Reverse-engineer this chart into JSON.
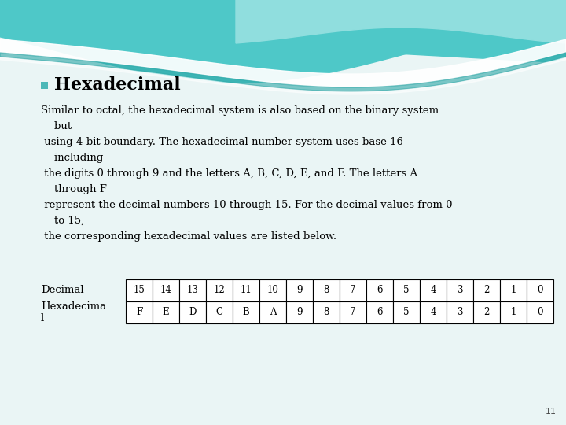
{
  "title": "Hexadecimal",
  "bullet_color": "#4db8b8",
  "title_fontsize": 16,
  "body_text": [
    "Similar to octal, the hexadecimal system is also based on the binary system",
    "    but",
    " using 4-bit boundary. The hexadecimal number system uses base 16",
    "    including",
    " the digits 0 through 9 and the letters A, B, C, D, E, and F. The letters A",
    "    through F",
    " represent the decimal numbers 10 through 15. For the decimal values from 0",
    "    to 15,",
    " the corresponding hexadecimal values are listed below."
  ],
  "decimal_row": [
    "15",
    "14",
    "13",
    "12",
    "11",
    "10",
    "9",
    "8",
    "7",
    "6",
    "5",
    "4",
    "3",
    "2",
    "1",
    "0"
  ],
  "hex_row": [
    "F",
    "E",
    "D",
    "C",
    "B",
    "A",
    "9",
    "8",
    "7",
    "6",
    "5",
    "4",
    "3",
    "2",
    "1",
    "0"
  ],
  "row_label_0": "Decimal",
  "row_label_1": "Hexadecima\nl",
  "body_fontsize": 9.5,
  "table_fontsize": 9.5,
  "page_number": "11",
  "bg_color": "#eaf5f5",
  "wave_dark_teal": "#4ec8c8",
  "wave_mid_teal": "#72d4d4",
  "wave_light_teal": "#90dede",
  "wave_white": "#ffffff",
  "wave_teal_line": "#30a8a8"
}
